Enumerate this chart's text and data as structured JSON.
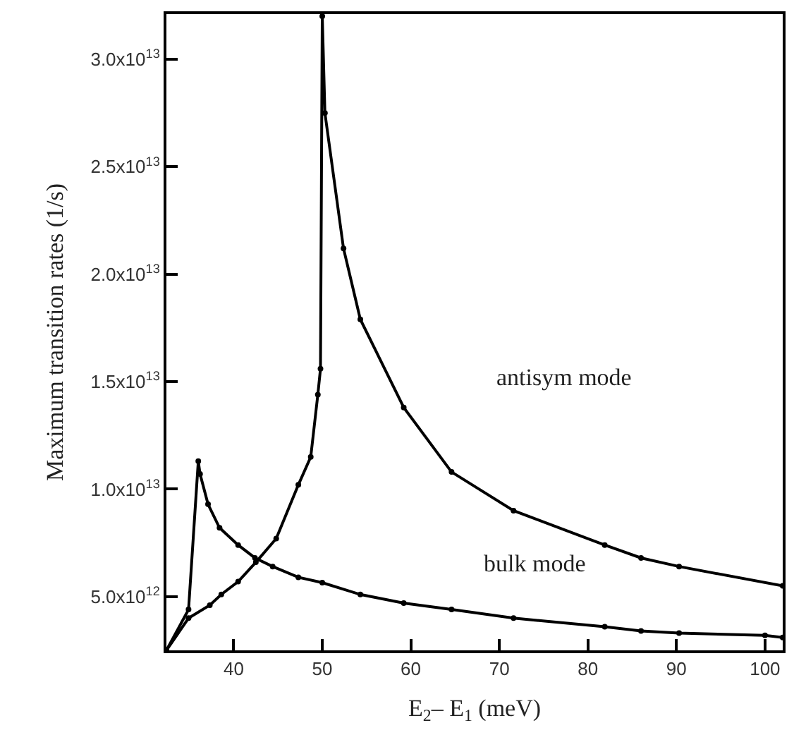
{
  "chart_data": {
    "type": "line",
    "xlabel": "E$_{2}$– E$_{1}$ (meV)",
    "ylabel": "Maximum transition rates (1/s)",
    "xlim": [
      32.4,
      102
    ],
    "ylim": [
      2500000000000.0,
      32100000000000.0
    ],
    "xticks": [
      40,
      50,
      60,
      70,
      80,
      90,
      100
    ],
    "yticks": [
      {
        "value": 5000000000000.0,
        "label": "5.0x10$^{12}$"
      },
      {
        "value": 10000000000000.0,
        "label": "1.0x10$^{13}$"
      },
      {
        "value": 15000000000000.0,
        "label": "1.5x10$^{13}$"
      },
      {
        "value": 20000000000000.0,
        "label": "2.0x10$^{13}$"
      },
      {
        "value": 25000000000000.0,
        "label": "2.5x10$^{13}$"
      },
      {
        "value": 30000000000000.0,
        "label": "3.0x10$^{13}$"
      }
    ],
    "marker": "circle",
    "line_style": "solid",
    "series": [
      {
        "color": "#000000",
        "x": [
          32.4,
          34.9,
          36.0,
          36.2,
          37.1,
          38.4,
          40.5,
          42.4,
          44.4,
          47.3,
          50.0,
          54.3,
          59.2,
          64.6,
          71.6,
          81.9,
          86.0,
          90.3,
          100.0,
          102.0
        ],
        "values": [
          2500000000000.0,
          4400000000000.0,
          11300000000000.0,
          10700000000000.0,
          9300000000000.0,
          8200000000000.0,
          7400000000000.0,
          6800000000000.0,
          6400000000000.0,
          5900000000000.0,
          5650000000000.0,
          5100000000000.0,
          4700000000000.0,
          4400000000000.0,
          4000000000000.0,
          3600000000000.0,
          3400000000000.0,
          3300000000000.0,
          3200000000000.0,
          3100000000000.0
        ]
      },
      {
        "color": "#000000",
        "x": [
          32.4,
          34.9,
          37.3,
          38.6,
          40.5,
          42.5,
          44.8,
          47.3,
          48.7,
          49.5,
          49.8,
          50.0,
          50.3,
          52.4,
          54.3,
          59.2,
          64.6,
          71.6,
          81.9,
          86.0,
          90.3,
          102.0
        ],
        "values": [
          2500000000000.0,
          4000000000000.0,
          4600000000000.0,
          5100000000000.0,
          5700000000000.0,
          6600000000000.0,
          7700000000000.0,
          10200000000000.0,
          11500000000000.0,
          14400000000000.0,
          15600000000000.0,
          32000000000000.0,
          27500000000000.0,
          21200000000000.0,
          17900000000000.0,
          13800000000000.0,
          10800000000000.0,
          9000000000000.0,
          7400000000000.0,
          6800000000000.0,
          6400000000000.0,
          5500000000000.0
        ]
      }
    ],
    "annotations": [
      "antisym mode",
      "bulk mode"
    ]
  }
}
